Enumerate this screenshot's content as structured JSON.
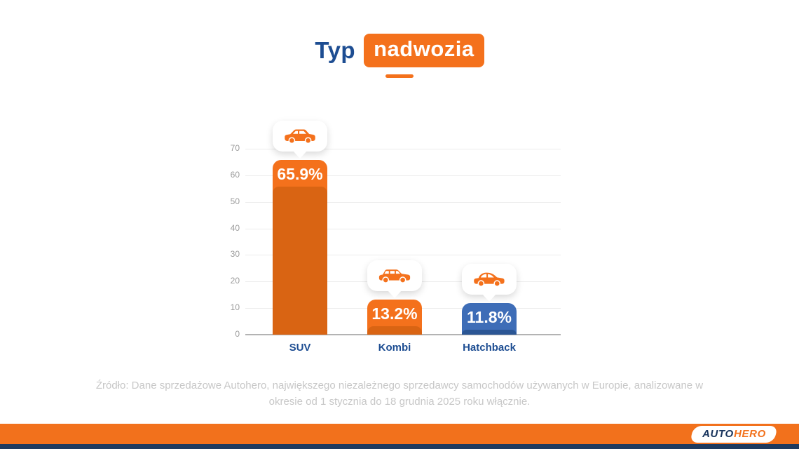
{
  "title": {
    "plain": "Typ",
    "highlighted": "nadwozia"
  },
  "source_note": "Źródło: Dane sprzedażowe Autohero, największego niezależnego sprzedawcy samochodów używanych w Europie, analizowane w okresie od 1 stycznia do 18 grudnia 2025 roku włącznie.",
  "footer": {
    "logo_part1": "AUTO",
    "logo_part2": "HERO"
  },
  "colors": {
    "orange": "#f4711c",
    "orange_dark": "#d96413",
    "blue": "#3e6db7",
    "blue_dark": "#2b5694",
    "navy": "#1d4d92",
    "footer_navy": "#1e3a5f",
    "grid": "#ececec",
    "axis": "#b3b3b3",
    "tick_text": "#9b9b9b",
    "source_text": "#c7c7c7"
  },
  "chart_data": {
    "type": "bar",
    "title": "Typ nadwozia",
    "categories": [
      "SUV",
      "Kombi",
      "Hatchback"
    ],
    "values": [
      65.9,
      13.2,
      11.8
    ],
    "labels": [
      "65.9%",
      "13.2%",
      "11.8%"
    ],
    "unit": "%",
    "ylim": [
      0,
      70
    ],
    "yticks": [
      0,
      10,
      20,
      30,
      40,
      50,
      60,
      70
    ],
    "grid": true,
    "legend": false,
    "xlabel": "",
    "ylabel": "",
    "bar_colors": [
      "orange",
      "orange",
      "blue"
    ],
    "icons": [
      "suv-car-icon",
      "kombi-car-icon",
      "hatchback-car-icon"
    ]
  }
}
